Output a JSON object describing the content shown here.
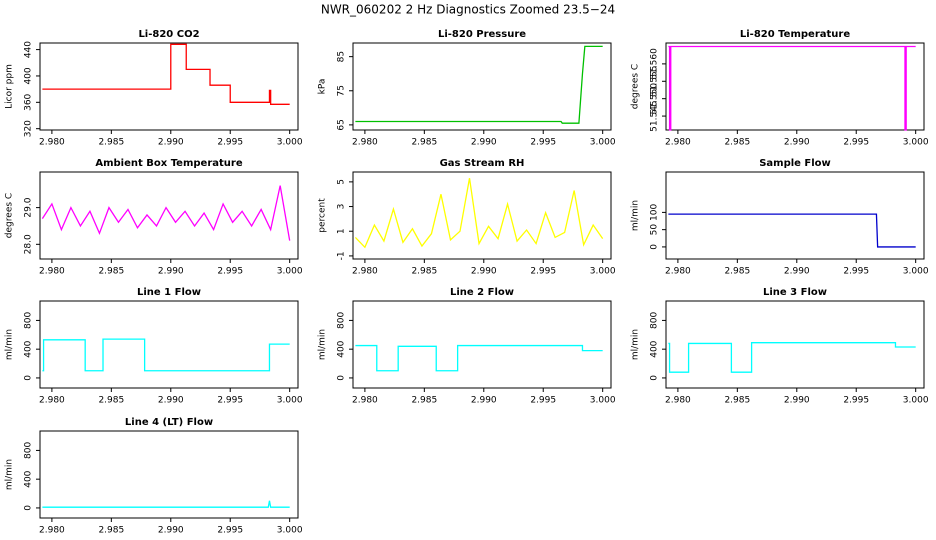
{
  "title": "NWR_060202  2 Hz Diagnostics Zoomed 23.5−24",
  "chart_data": [
    {
      "type": "line",
      "title": "Li-820 CO2",
      "ylabel": "Licor ppm",
      "color": "#ff0000",
      "x": [
        2.9792,
        2.99,
        2.99,
        2.9913,
        2.9913,
        2.9933,
        2.9933,
        2.995,
        2.995,
        2.9983,
        2.9983,
        2.9984,
        2.9984,
        3.0
      ],
      "values": [
        380,
        380,
        448,
        448,
        410,
        410,
        386,
        386,
        360,
        360,
        378,
        378,
        357,
        357
      ],
      "xlim": [
        2.979,
        3.0007
      ],
      "xticks": [
        {
          "value": 2.98,
          "label": "2.980"
        },
        2.985,
        {
          "value": 2.99,
          "label": "2.990"
        },
        2.995,
        {
          "value": 3,
          "label": "3.000"
        }
      ],
      "ylim": [
        318,
        450
      ],
      "yticks": [
        320,
        360,
        400,
        440
      ]
    },
    {
      "type": "line",
      "title": "Li-820 Pressure",
      "ylabel": "kPa",
      "color": "#00c000",
      "x": [
        2.9792,
        2.9965,
        2.9966,
        2.998,
        2.9983,
        2.9985,
        3.0
      ],
      "values": [
        66,
        66,
        65.5,
        65.5,
        80,
        88,
        88
      ],
      "xlim": [
        2.979,
        3.0007
      ],
      "xticks": [
        {
          "value": 2.98,
          "label": "2.980"
        },
        2.985,
        {
          "value": 2.99,
          "label": "2.990"
        },
        2.995,
        {
          "value": 3,
          "label": "3.000"
        }
      ],
      "ylim": [
        63.5,
        89
      ],
      "yticks": [
        65,
        75,
        85
      ]
    },
    {
      "type": "line",
      "title": "Li-820 Temperature",
      "ylabel": "degrees C",
      "color": "#ff00ff",
      "x": [
        2.9792,
        2.9793,
        2.9793,
        2.9794,
        2.9794,
        2.9991,
        2.9991,
        2.9992,
        2.9992,
        3.0
      ],
      "values": [
        51.565,
        51.565,
        51.541,
        51.541,
        51.565,
        51.565,
        51.541,
        51.541,
        51.565,
        51.565
      ],
      "xlim": [
        2.979,
        3.0007
      ],
      "xticks": [
        {
          "value": 2.98,
          "label": "2.980"
        },
        2.985,
        {
          "value": 2.99,
          "label": "2.990"
        },
        2.995,
        {
          "value": 3,
          "label": "3.000"
        }
      ],
      "ylim": [
        51.541,
        51.566
      ],
      "yticks": [
        51.545,
        {
          "value": 51.55,
          "label": "51.550"
        },
        51.555,
        {
          "value": 51.56,
          "label": "51.560"
        }
      ]
    },
    {
      "type": "line",
      "title": "Ambient Box Temperature",
      "ylabel": "degrees C",
      "color": "#ff00ff",
      "x": [
        2.9792,
        2.98,
        2.9808,
        2.9816,
        2.9824,
        2.9832,
        2.984,
        2.9848,
        2.9856,
        2.9864,
        2.9872,
        2.988,
        2.9888,
        2.9896,
        2.9904,
        2.9912,
        2.992,
        2.9928,
        2.9936,
        2.9944,
        2.9952,
        2.996,
        2.9968,
        2.9976,
        2.9984,
        2.9992,
        3.0
      ],
      "values": [
        28.7,
        29.1,
        28.4,
        29.0,
        28.5,
        28.9,
        28.3,
        29.0,
        28.6,
        28.95,
        28.45,
        28.8,
        28.5,
        29.0,
        28.6,
        28.9,
        28.5,
        28.85,
        28.4,
        29.1,
        28.6,
        28.9,
        28.5,
        28.95,
        28.4,
        29.6,
        28.1
      ],
      "xlim": [
        2.979,
        3.0007
      ],
      "xticks": [
        {
          "value": 2.98,
          "label": "2.980"
        },
        2.985,
        {
          "value": 2.99,
          "label": "2.990"
        },
        2.995,
        {
          "value": 3,
          "label": "3.000"
        }
      ],
      "ylim": [
        27.6,
        29.97
      ],
      "yticks": [
        {
          "value": 28,
          "label": "28.0"
        },
        {
          "value": 29,
          "label": "29.0"
        }
      ]
    },
    {
      "type": "line",
      "title": "Gas Stream RH",
      "ylabel": "percent",
      "color": "#ffff00",
      "x": [
        2.9792,
        2.98,
        2.9808,
        2.9816,
        2.9824,
        2.9832,
        2.984,
        2.9848,
        2.9856,
        2.9864,
        2.9872,
        2.988,
        2.9888,
        2.9896,
        2.9904,
        2.9912,
        2.992,
        2.9928,
        2.9936,
        2.9944,
        2.9952,
        2.996,
        2.9968,
        2.9976,
        2.9984,
        2.9992,
        3.0
      ],
      "values": [
        0.5,
        -0.3,
        1.5,
        0.2,
        2.8,
        0.1,
        1.2,
        -0.2,
        0.8,
        4.0,
        0.3,
        1.0,
        5.3,
        0.0,
        1.4,
        0.4,
        3.2,
        0.2,
        1.1,
        0.0,
        2.5,
        0.5,
        0.9,
        4.3,
        -0.1,
        1.5,
        0.4
      ],
      "xlim": [
        2.979,
        3.0007
      ],
      "xticks": [
        {
          "value": 2.98,
          "label": "2.980"
        },
        2.985,
        {
          "value": 2.99,
          "label": "2.990"
        },
        2.995,
        {
          "value": 3,
          "label": "3.000"
        }
      ],
      "ylim": [
        -1.25,
        5.8
      ],
      "yticks": [
        -1,
        1,
        3,
        5
      ]
    },
    {
      "type": "line",
      "title": "Sample Flow",
      "ylabel": "ml/min",
      "color": "#0000cc",
      "x": [
        2.9792,
        2.9967,
        2.9968,
        3.0
      ],
      "values": [
        95,
        95,
        0,
        0
      ],
      "xlim": [
        2.979,
        3.0007
      ],
      "xticks": [
        {
          "value": 2.98,
          "label": "2.980"
        },
        2.985,
        {
          "value": 2.99,
          "label": "2.990"
        },
        2.995,
        {
          "value": 3,
          "label": "3.000"
        }
      ],
      "ylim": [
        -35,
        217
      ],
      "yticks": [
        0,
        50,
        100
      ]
    },
    {
      "type": "line",
      "title": "Line 1 Flow",
      "ylabel": "ml/min",
      "color": "#00ffff",
      "x": [
        2.9792,
        2.9793,
        2.9793,
        2.9828,
        2.9828,
        2.9843,
        2.9843,
        2.9878,
        2.9878,
        2.9983,
        2.9983,
        3.0
      ],
      "values": [
        100,
        100,
        530,
        530,
        100,
        100,
        540,
        540,
        100,
        100,
        470,
        470
      ],
      "xlim": [
        2.979,
        3.0007
      ],
      "xticks": [
        {
          "value": 2.98,
          "label": "2.980"
        },
        2.985,
        {
          "value": 2.99,
          "label": "2.990"
        },
        2.995,
        {
          "value": 3,
          "label": "3.000"
        }
      ],
      "ylim": [
        -140,
        1070
      ],
      "yticks": [
        0,
        400,
        800
      ]
    },
    {
      "type": "line",
      "title": "Line 2 Flow",
      "ylabel": "ml/min",
      "color": "#00ffff",
      "x": [
        2.9792,
        2.981,
        2.981,
        2.9828,
        2.9828,
        2.986,
        2.986,
        2.9878,
        2.9878,
        2.9983,
        2.9983,
        3.0
      ],
      "values": [
        450,
        450,
        100,
        100,
        440,
        440,
        100,
        100,
        450,
        450,
        380,
        380
      ],
      "xlim": [
        2.979,
        3.0007
      ],
      "xticks": [
        {
          "value": 2.98,
          "label": "2.980"
        },
        2.985,
        {
          "value": 2.99,
          "label": "2.990"
        },
        2.995,
        {
          "value": 3,
          "label": "3.000"
        }
      ],
      "ylim": [
        -140,
        1070
      ],
      "yticks": [
        0,
        400,
        800
      ]
    },
    {
      "type": "line",
      "title": "Line 3 Flow",
      "ylabel": "ml/min",
      "color": "#00ffff",
      "x": [
        2.9792,
        2.9793,
        2.9793,
        2.9809,
        2.9809,
        2.9845,
        2.9845,
        2.9862,
        2.9862,
        2.9983,
        2.9983,
        3.0
      ],
      "values": [
        480,
        480,
        80,
        80,
        480,
        480,
        80,
        80,
        490,
        490,
        430,
        430
      ],
      "xlim": [
        2.979,
        3.0007
      ],
      "xticks": [
        {
          "value": 2.98,
          "label": "2.980"
        },
        2.985,
        {
          "value": 2.99,
          "label": "2.990"
        },
        2.995,
        {
          "value": 3,
          "label": "3.000"
        }
      ],
      "ylim": [
        -140,
        1070
      ],
      "yticks": [
        0,
        400,
        800
      ]
    },
    {
      "type": "line",
      "title": "Line 4 (LT) Flow",
      "ylabel": "ml/min",
      "color": "#00ffff",
      "x": [
        2.9792,
        2.9982,
        2.9983,
        2.9984,
        3.0
      ],
      "values": [
        10,
        10,
        100,
        10,
        10
      ],
      "xlim": [
        2.979,
        3.0007
      ],
      "xticks": [
        {
          "value": 2.98,
          "label": "2.980"
        },
        2.985,
        {
          "value": 2.99,
          "label": "2.990"
        },
        2.995,
        {
          "value": 3,
          "label": "3.000"
        }
      ],
      "ylim": [
        -140,
        1070
      ],
      "yticks": [
        0,
        400,
        800
      ]
    }
  ]
}
